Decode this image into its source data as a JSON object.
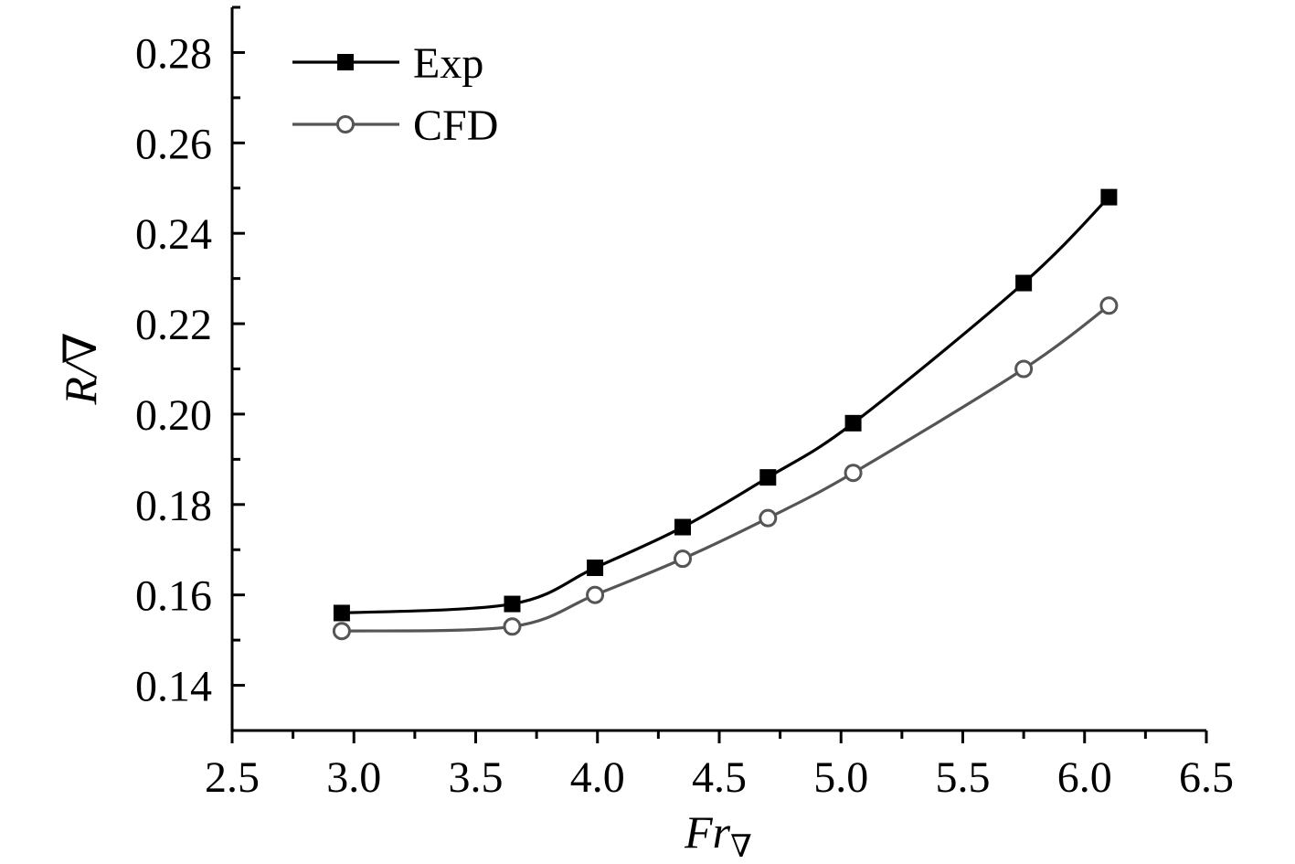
{
  "chart_data": {
    "type": "line",
    "xlabel": "Fr",
    "xlabel_sub": "∇",
    "ylabel": "R/∇",
    "xlim": [
      2.5,
      6.5
    ],
    "ylim": [
      0.13,
      0.29
    ],
    "x_ticks": [
      2.5,
      3.0,
      3.5,
      4.0,
      4.5,
      5.0,
      5.5,
      6.0,
      6.5
    ],
    "x_tick_labels": [
      "2.5",
      "3.0",
      "3.5",
      "4.0",
      "4.5",
      "5.0",
      "5.5",
      "6.0",
      "6.5"
    ],
    "y_ticks": [
      0.14,
      0.16,
      0.18,
      0.2,
      0.22,
      0.24,
      0.26,
      0.28
    ],
    "y_tick_labels": [
      "0.14",
      "0.16",
      "0.18",
      "0.20",
      "0.22",
      "0.24",
      "0.26",
      "0.28"
    ],
    "grid": false,
    "legend_position": "top-left",
    "series": [
      {
        "name": "Exp",
        "marker": "filled-square",
        "color": "#000000",
        "x": [
          2.95,
          3.65,
          3.99,
          4.35,
          4.7,
          5.05,
          5.75,
          6.1
        ],
        "y": [
          0.156,
          0.158,
          0.166,
          0.175,
          0.186,
          0.198,
          0.229,
          0.248
        ]
      },
      {
        "name": "CFD",
        "marker": "open-circle",
        "color": "#555555",
        "x": [
          2.95,
          3.65,
          3.99,
          4.35,
          4.7,
          5.05,
          5.75,
          6.1
        ],
        "y": [
          0.152,
          0.153,
          0.16,
          0.168,
          0.177,
          0.187,
          0.21,
          0.224
        ]
      }
    ]
  }
}
